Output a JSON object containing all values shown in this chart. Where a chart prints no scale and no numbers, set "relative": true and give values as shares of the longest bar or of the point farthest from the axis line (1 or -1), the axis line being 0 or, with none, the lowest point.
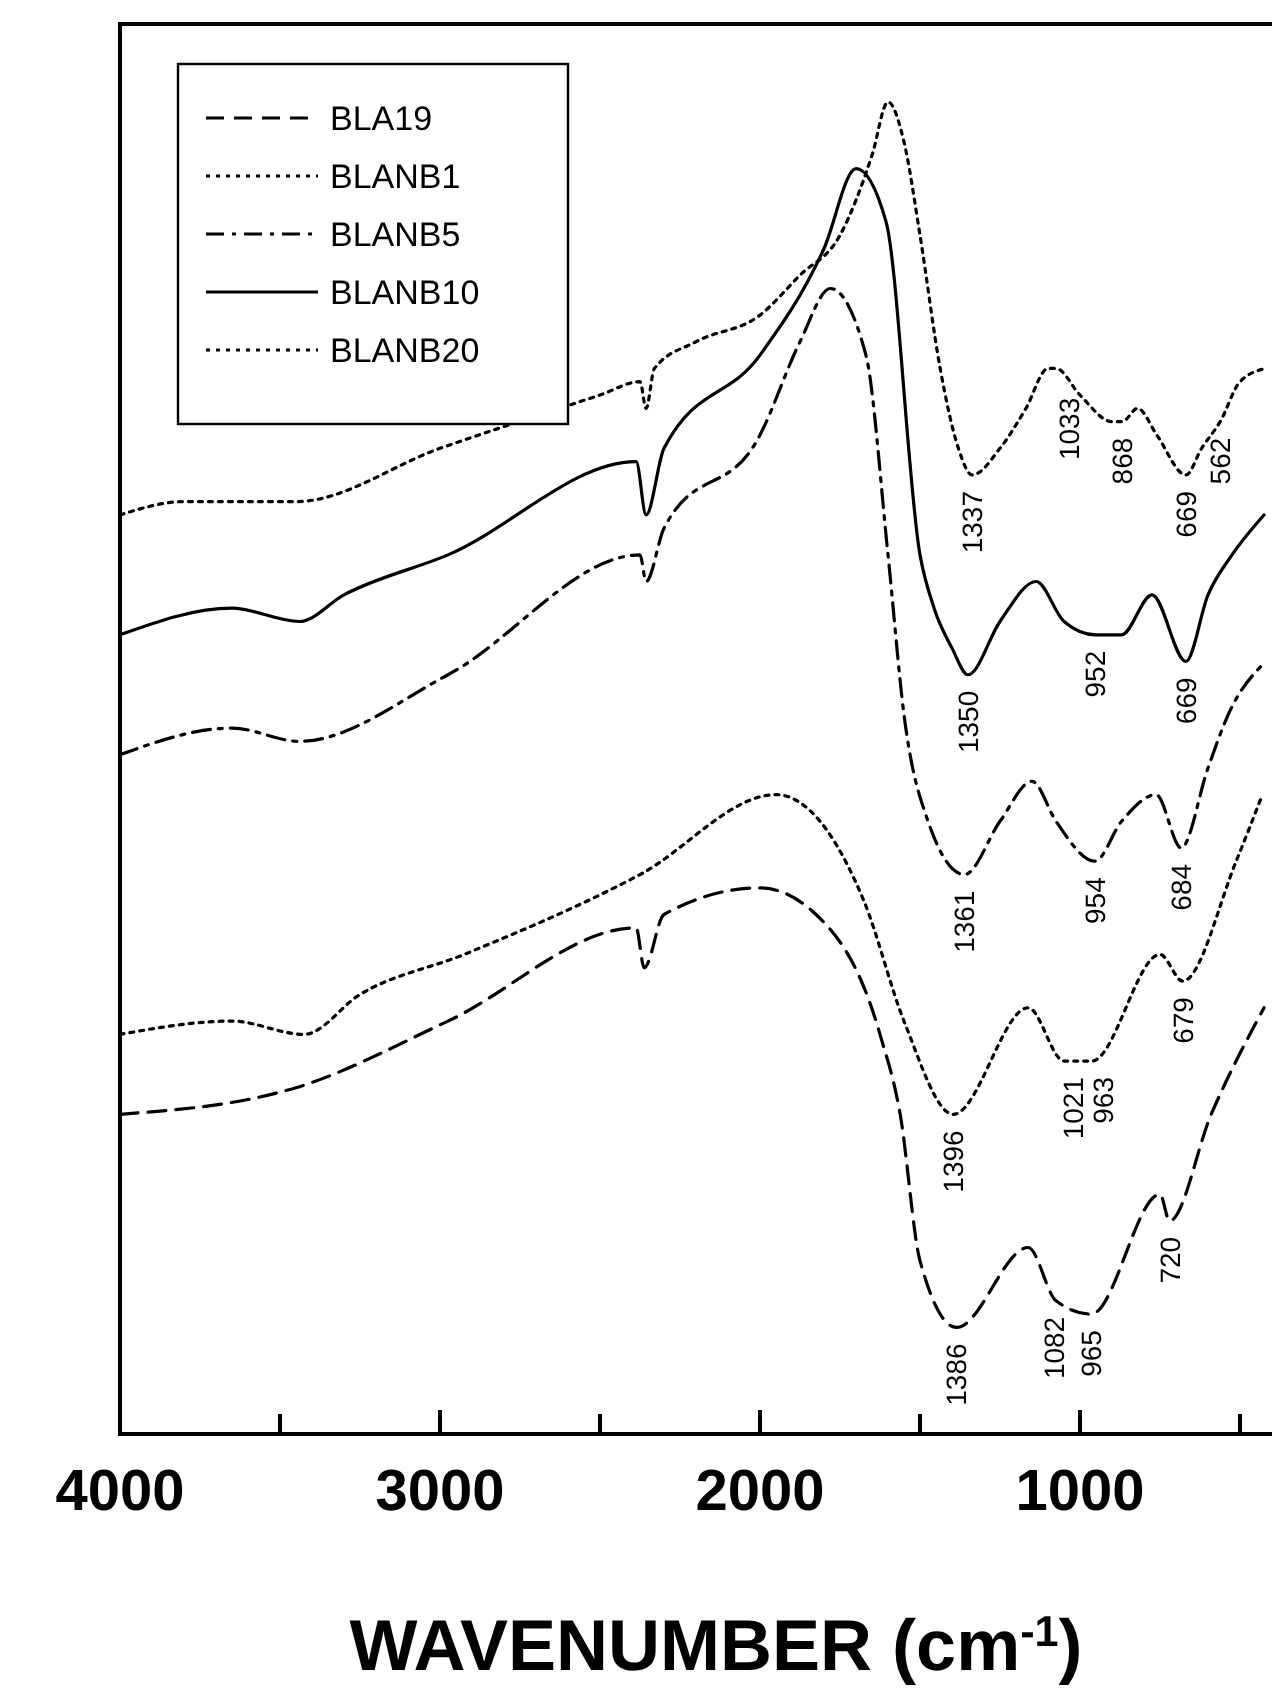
{
  "chart_data": {
    "type": "line",
    "relative": true,
    "xlabel": "WAVENUMBER (cm$^{-1}$)",
    "xlim": [
      4000,
      400
    ],
    "xticks": [
      4000,
      {
        "value": 3500,
        "label": null
      },
      3000,
      {
        "value": 2500,
        "label": null
      },
      2000,
      {
        "value": 1500,
        "label": null
      },
      1000,
      {
        "value": 500,
        "label": null
      }
    ],
    "legend": "top left",
    "grid": false,
    "marker": "none",
    "series": [
      {
        "name": "BLA19",
        "color": "#000000",
        "line_style": "dashed",
        "x": [
          4000,
          3450,
          2975,
          2387,
          2362,
          2300,
          2000,
          1825,
          1625,
          1562,
          1500,
          1386,
          1162,
          1075,
          965,
          750,
          720,
          590,
          425
        ],
        "values": [
          0.24,
          0.26,
          0.31,
          0.38,
          0.35,
          0.39,
          0.41,
          0.39,
          0.3,
          0.24,
          0.13,
          0.08,
          0.14,
          0.1,
          0.09,
          0.18,
          0.16,
          0.24,
          0.32
        ]
      },
      {
        "name": "BLANB1",
        "color": "#000000",
        "line_style": "dotted",
        "x": [
          4000,
          3650,
          3425,
          3250,
          2925,
          2375,
          1950,
          1675,
          1550,
          1396,
          1162,
          1050,
          963,
          750,
          679,
          512,
          430
        ],
        "values": [
          0.3,
          0.31,
          0.3,
          0.33,
          0.36,
          0.42,
          0.48,
          0.4,
          0.31,
          0.24,
          0.32,
          0.28,
          0.28,
          0.36,
          0.34,
          0.43,
          0.48
        ]
      },
      {
        "name": "BLANB5",
        "color": "#000000",
        "line_style": "dashdot",
        "x": [
          4000,
          3650,
          3440,
          2975,
          2375,
          2356,
          2300,
          2000,
          1875,
          1780,
          1669,
          1600,
          1550,
          1475,
          1361,
          1250,
          1150,
          1075,
          954,
          870,
          762,
          684,
          600,
          537,
          420
        ],
        "values": [
          0.51,
          0.53,
          0.52,
          0.57,
          0.66,
          0.64,
          0.68,
          0.75,
          0.82,
          0.86,
          0.81,
          0.66,
          0.54,
          0.46,
          0.42,
          0.46,
          0.49,
          0.46,
          0.43,
          0.46,
          0.48,
          0.44,
          0.5,
          0.54,
          0.58
        ]
      },
      {
        "name": "BLANB10",
        "color": "#000000",
        "line_style": "solid",
        "x": [
          4000,
          3650,
          3440,
          3300,
          2975,
          2387,
          2356,
          2300,
          2000,
          1800,
          1700,
          1606,
          1500,
          1456,
          1400,
          1350,
          1250,
          1137,
          1050,
          952,
          870,
          775,
          669,
          600,
          525,
          425
        ],
        "values": [
          0.6,
          0.62,
          0.61,
          0.63,
          0.66,
          0.73,
          0.69,
          0.74,
          0.81,
          0.89,
          0.95,
          0.91,
          0.66,
          0.62,
          0.59,
          0.57,
          0.61,
          0.64,
          0.61,
          0.6,
          0.6,
          0.63,
          0.58,
          0.63,
          0.66,
          0.69
        ]
      },
      {
        "name": "BLANB20",
        "color": "#000000",
        "line_style": "dotted",
        "x": [
          4000,
          3800,
          3600,
          3450,
          3000,
          2500,
          2375,
          2356,
          2330,
          2200,
          2000,
          1875,
          1750,
          1650,
          1600,
          1550,
          1500,
          1437,
          1380,
          1337,
          1250,
          1169,
          1100,
          1075,
          1000,
          900,
          868,
          820,
          760,
          669,
          620,
          562,
          500,
          420
        ],
        "values": [
          0.69,
          0.7,
          0.7,
          0.7,
          0.74,
          0.78,
          0.79,
          0.77,
          0.8,
          0.82,
          0.84,
          0.87,
          0.9,
          0.96,
          1.0,
          0.97,
          0.9,
          0.8,
          0.74,
          0.72,
          0.74,
          0.77,
          0.8,
          0.8,
          0.78,
          0.76,
          0.76,
          0.77,
          0.75,
          0.72,
          0.74,
          0.76,
          0.79,
          0.8
        ]
      }
    ],
    "annotations": [
      {
        "text": "1337",
        "x": 1337,
        "y": 0.72
      },
      {
        "text": "1033",
        "x": 1033,
        "y": 0.79
      },
      {
        "text": "868",
        "x": 868,
        "y": 0.76
      },
      {
        "text": "669",
        "x": 669,
        "y": 0.72
      },
      {
        "text": "562",
        "x": 562,
        "y": 0.76
      },
      {
        "text": "1350",
        "x": 1350,
        "y": 0.57
      },
      {
        "text": "952",
        "x": 952,
        "y": 0.6
      },
      {
        "text": "669",
        "x": 669,
        "y": 0.58
      },
      {
        "text": "1361",
        "x": 1361,
        "y": 0.42
      },
      {
        "text": "954",
        "x": 954,
        "y": 0.43
      },
      {
        "text": "684",
        "x": 684,
        "y": 0.44
      },
      {
        "text": "1396",
        "x": 1396,
        "y": 0.24
      },
      {
        "text": "1021",
        "x": 1021,
        "y": 0.28
      },
      {
        "text": "963",
        "x": 963,
        "y": 0.28
      },
      {
        "text": "679",
        "x": 679,
        "y": 0.34
      },
      {
        "text": "1386",
        "x": 1386,
        "y": 0.08
      },
      {
        "text": "1082",
        "x": 1082,
        "y": 0.1
      },
      {
        "text": "965",
        "x": 965,
        "y": 0.09
      },
      {
        "text": "720",
        "x": 720,
        "y": 0.16
      }
    ]
  }
}
